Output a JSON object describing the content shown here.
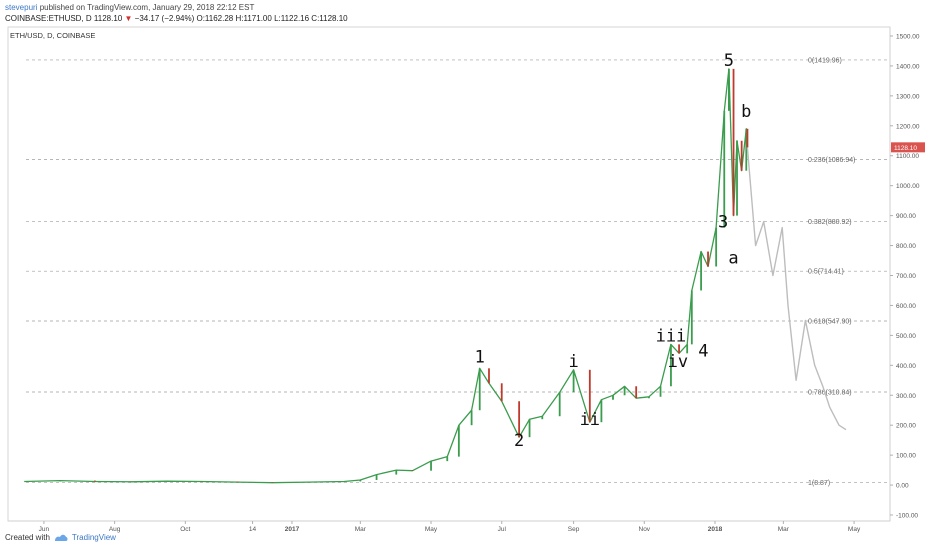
{
  "header": {
    "author": "stevepuri",
    "published_text": "published on TradingView.com, January 29, 2018 22:12 EST",
    "ticker": "COINBASE:ETHUSD, D",
    "last": "1128.10",
    "change": "−34.17 (−2.94%)",
    "open": "O:1162.28",
    "high": "H:1171.00",
    "low": "L:1122.16",
    "close": "C:1128.10"
  },
  "symbol_label": "ETH/USD, D, COINBASE",
  "footer": {
    "created_with": "Created with",
    "brand": "TradingView"
  },
  "colors": {
    "up": "#3a9c4d",
    "down": "#c0392b",
    "projection": "#bdbdbd",
    "price_tag": "#d9534f",
    "fib_line": "#9e9e9e"
  },
  "chart_data": {
    "type": "line",
    "y_axis": {
      "ticks": [
        "-100.00",
        "0.00",
        "100.00",
        "200.00",
        "300.00",
        "400.00",
        "500.00",
        "600.00",
        "700.00",
        "800.00",
        "900.00",
        "1000.00",
        "1100.00",
        "1200.00",
        "1300.00",
        "1400.00",
        "1500.00"
      ],
      "ylim": [
        -120,
        1530
      ]
    },
    "x_axis": {
      "ticks": [
        "Jun",
        "Aug",
        "Oct",
        "14",
        "2017",
        "Mar",
        "May",
        "Jul",
        "Sep",
        "Nov",
        "2018",
        "Mar",
        "May"
      ]
    },
    "last_price_tag": "1128.10",
    "fib_levels": [
      {
        "label": "0(1419.96)",
        "value": 1419.96
      },
      {
        "label": "0.236(1086.94)",
        "value": 1086.94
      },
      {
        "label": "0.382(880.92)",
        "value": 880.92
      },
      {
        "label": "0.5(714.41)",
        "value": 714.41
      },
      {
        "label": "0.618(547.90)",
        "value": 547.9
      },
      {
        "label": "0.786(310.84)",
        "value": 310.84
      },
      {
        "label": "1(8.87)",
        "value": 8.87
      }
    ],
    "wave_labels": [
      {
        "text": "1",
        "date": "2017-06-12",
        "price": 410
      },
      {
        "text": "2",
        "date": "2017-07-16",
        "price": 130
      },
      {
        "text": "i",
        "date": "2017-09-01",
        "price": 395
      },
      {
        "text": "ii",
        "date": "2017-09-15",
        "price": 200
      },
      {
        "text": "iii",
        "date": "2017-11-24",
        "price": 480
      },
      {
        "text": "iv",
        "date": "2017-11-30",
        "price": 395
      },
      {
        "text": "3",
        "date": "2018-01-08",
        "price": 860
      },
      {
        "text": "4",
        "date": "2017-12-22",
        "price": 430
      },
      {
        "text": "5",
        "date": "2018-01-13",
        "price": 1400
      },
      {
        "text": "a",
        "date": "2018-01-17",
        "price": 740
      },
      {
        "text": "b",
        "date": "2018-01-28",
        "price": 1230
      }
    ],
    "series": [
      {
        "values": [
          [
            "2016-05-15",
            12
          ],
          [
            "2016-06-15",
            15
          ],
          [
            "2016-07-15",
            12
          ],
          [
            "2016-08-15",
            11
          ],
          [
            "2016-09-15",
            13
          ],
          [
            "2016-10-15",
            12
          ],
          [
            "2016-11-15",
            10
          ],
          [
            "2016-12-15",
            8
          ],
          [
            "2017-01-15",
            10
          ],
          [
            "2017-02-15",
            12
          ],
          [
            "2017-03-01",
            17
          ],
          [
            "2017-03-15",
            35
          ],
          [
            "2017-04-01",
            50
          ],
          [
            "2017-04-15",
            48
          ],
          [
            "2017-05-01",
            80
          ],
          [
            "2017-05-15",
            95
          ],
          [
            "2017-05-25",
            200
          ],
          [
            "2017-06-05",
            250
          ],
          [
            "2017-06-12",
            390
          ],
          [
            "2017-06-20",
            340
          ],
          [
            "2017-07-01",
            280
          ],
          [
            "2017-07-16",
            160
          ],
          [
            "2017-07-25",
            220
          ],
          [
            "2017-08-05",
            230
          ],
          [
            "2017-08-20",
            310
          ],
          [
            "2017-09-01",
            385
          ],
          [
            "2017-09-15",
            210
          ],
          [
            "2017-09-25",
            285
          ],
          [
            "2017-10-05",
            300
          ],
          [
            "2017-10-15",
            330
          ],
          [
            "2017-10-25",
            290
          ],
          [
            "2017-11-05",
            295
          ],
          [
            "2017-11-15",
            330
          ],
          [
            "2017-11-24",
            470
          ],
          [
            "2017-12-01",
            440
          ],
          [
            "2017-12-08",
            470
          ],
          [
            "2017-12-12",
            650
          ],
          [
            "2017-12-20",
            780
          ],
          [
            "2017-12-26",
            730
          ],
          [
            "2018-01-02",
            860
          ],
          [
            "2018-01-09",
            1250
          ],
          [
            "2018-01-13",
            1390
          ],
          [
            "2018-01-17",
            900
          ],
          [
            "2018-01-20",
            1150
          ],
          [
            "2018-01-24",
            1050
          ],
          [
            "2018-01-28",
            1190
          ],
          [
            "2018-01-29",
            1128
          ]
        ]
      },
      {
        "values": [
          [
            "2018-01-29",
            1128
          ],
          [
            "2018-02-05",
            800
          ],
          [
            "2018-02-12",
            880
          ],
          [
            "2018-02-20",
            700
          ],
          [
            "2018-02-28",
            860
          ],
          [
            "2018-03-05",
            600
          ],
          [
            "2018-03-12",
            350
          ],
          [
            "2018-03-20",
            550
          ],
          [
            "2018-03-28",
            400
          ],
          [
            "2018-04-04",
            330
          ],
          [
            "2018-04-10",
            260
          ],
          [
            "2018-04-18",
            200
          ],
          [
            "2018-04-24",
            185
          ]
        ]
      }
    ]
  }
}
